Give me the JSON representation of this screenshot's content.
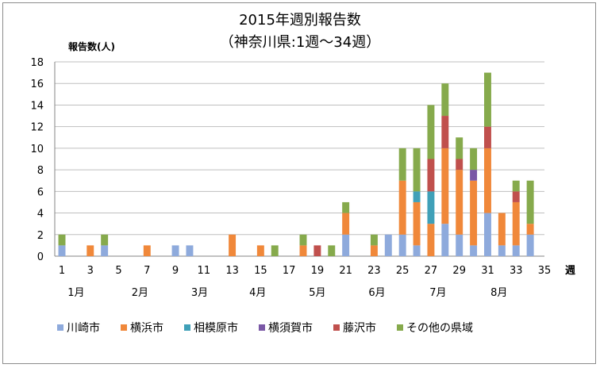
{
  "chart_data": {
    "type": "bar",
    "stacked": true,
    "title": "2015年週別報告数",
    "subtitle": "（神奈川県:1週～34週）",
    "ylabel": "報告数(人)",
    "xlabel": "週",
    "ylim": [
      0,
      18
    ],
    "yticks": [
      0,
      2,
      4,
      6,
      8,
      10,
      12,
      14,
      16,
      18
    ],
    "xlim": [
      1,
      35
    ],
    "xticks": [
      1,
      3,
      5,
      7,
      9,
      11,
      13,
      15,
      17,
      19,
      21,
      23,
      25,
      27,
      29,
      31,
      33,
      35
    ],
    "month_labels": [
      {
        "label": "1月",
        "week": 2
      },
      {
        "label": "2月",
        "week": 6.5
      },
      {
        "label": "3月",
        "week": 10.7
      },
      {
        "label": "4月",
        "week": 14.8
      },
      {
        "label": "5月",
        "week": 19
      },
      {
        "label": "6月",
        "week": 23.2
      },
      {
        "label": "7月",
        "week": 27.5
      },
      {
        "label": "8月",
        "week": 31.8
      }
    ],
    "grid": true,
    "legend_position": "bottom",
    "weeks": [
      1,
      2,
      3,
      4,
      5,
      6,
      7,
      8,
      9,
      10,
      11,
      12,
      13,
      14,
      15,
      16,
      17,
      18,
      19,
      20,
      21,
      22,
      23,
      24,
      25,
      26,
      27,
      28,
      29,
      30,
      31,
      32,
      33,
      34
    ],
    "series": [
      {
        "name": "川崎市",
        "color": "#8eaadc",
        "values": [
          1,
          0,
          0,
          1,
          0,
          0,
          0,
          0,
          1,
          1,
          0,
          0,
          0,
          0,
          0,
          0,
          0,
          0,
          0,
          0,
          2,
          0,
          0,
          2,
          2,
          1,
          0,
          3,
          2,
          1,
          4,
          1,
          1,
          2
        ]
      },
      {
        "name": "横浜市",
        "color": "#f0883a",
        "values": [
          0,
          0,
          1,
          0,
          0,
          0,
          1,
          0,
          0,
          0,
          0,
          0,
          2,
          0,
          1,
          0,
          0,
          1,
          0,
          0,
          2,
          0,
          1,
          0,
          5,
          4,
          3,
          7,
          6,
          6,
          6,
          3,
          4,
          1
        ]
      },
      {
        "name": "相模原市",
        "color": "#3fa0b8",
        "values": [
          0,
          0,
          0,
          0,
          0,
          0,
          0,
          0,
          0,
          0,
          0,
          0,
          0,
          0,
          0,
          0,
          0,
          0,
          0,
          0,
          0,
          0,
          0,
          0,
          0,
          1,
          3,
          0,
          0,
          0,
          0,
          0,
          0,
          0
        ]
      },
      {
        "name": "横須賀市",
        "color": "#7a58a6",
        "values": [
          0,
          0,
          0,
          0,
          0,
          0,
          0,
          0,
          0,
          0,
          0,
          0,
          0,
          0,
          0,
          0,
          0,
          0,
          0,
          0,
          0,
          0,
          0,
          0,
          0,
          0,
          0,
          0,
          0,
          1,
          0,
          0,
          0,
          0
        ]
      },
      {
        "name": "藤沢市",
        "color": "#c0504d",
        "values": [
          0,
          0,
          0,
          0,
          0,
          0,
          0,
          0,
          0,
          0,
          0,
          0,
          0,
          0,
          0,
          0,
          0,
          0,
          1,
          0,
          0,
          0,
          0,
          0,
          0,
          0,
          3,
          3,
          1,
          0,
          2,
          0,
          1,
          0
        ]
      },
      {
        "name": "その他の県域",
        "color": "#86aa4c",
        "values": [
          1,
          0,
          0,
          1,
          0,
          0,
          0,
          0,
          0,
          0,
          0,
          0,
          0,
          0,
          0,
          1,
          0,
          1,
          0,
          1,
          1,
          0,
          1,
          0,
          3,
          4,
          5,
          3,
          2,
          2,
          5,
          0,
          1,
          4
        ]
      }
    ]
  }
}
